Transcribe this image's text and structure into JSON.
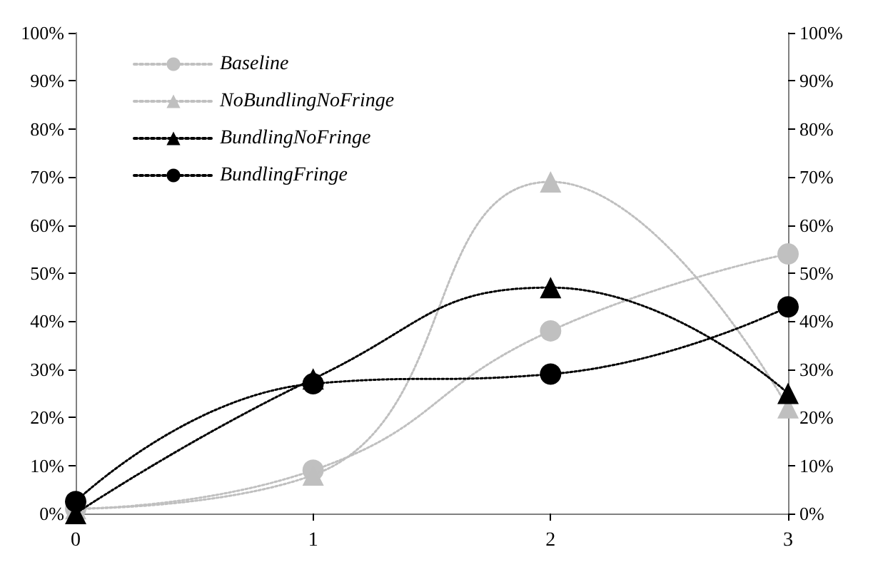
{
  "chart_data": {
    "type": "line",
    "x": [
      0,
      1,
      2,
      3
    ],
    "xlim": [
      0,
      3
    ],
    "xticks": [
      0,
      1,
      2,
      3
    ],
    "ylim": [
      0,
      100
    ],
    "yticks": [
      {
        "value": 0,
        "label": "0%"
      },
      {
        "value": 10,
        "label": "10%"
      },
      {
        "value": 20,
        "label": "20%"
      },
      {
        "value": 30,
        "label": "30%"
      },
      {
        "value": 40,
        "label": "40%"
      },
      {
        "value": 50,
        "label": "50%"
      },
      {
        "value": 60,
        "label": "60%"
      },
      {
        "value": 70,
        "label": "70%"
      },
      {
        "value": 80,
        "label": "80%"
      },
      {
        "value": 90,
        "label": "90%"
      },
      {
        "value": 100,
        "label": "100%"
      }
    ],
    "y2lim": [
      0,
      100
    ],
    "y2ticks": [
      {
        "value": 0,
        "label": "0%"
      },
      {
        "value": 10,
        "label": "10%"
      },
      {
        "value": 20,
        "label": "20%"
      },
      {
        "value": 30,
        "label": "30%"
      },
      {
        "value": 40,
        "label": "40%"
      },
      {
        "value": 50,
        "label": "50%"
      },
      {
        "value": 60,
        "label": "60%"
      },
      {
        "value": 70,
        "label": "70%"
      },
      {
        "value": 80,
        "label": "80%"
      },
      {
        "value": 90,
        "label": "90%"
      },
      {
        "value": 100,
        "label": "100%"
      }
    ],
    "series": [
      {
        "name": "Baseline",
        "color": "#c0c0c0",
        "marker": "circle",
        "values": [
          1,
          9,
          38,
          54
        ]
      },
      {
        "name": "NoBundlingNoFringe",
        "color": "#bfbfbf",
        "marker": "triangle",
        "values": [
          1,
          8,
          69,
          22
        ]
      },
      {
        "name": "BundlingNoFringe",
        "color": "#000000",
        "marker": "triangle",
        "values": [
          0,
          28,
          47,
          25
        ]
      },
      {
        "name": "BundlingFringe",
        "color": "#000000",
        "marker": "circle",
        "values": [
          2.5,
          27,
          29,
          43
        ]
      }
    ],
    "line_style": "dotted",
    "grid": false,
    "legend": "top left"
  }
}
